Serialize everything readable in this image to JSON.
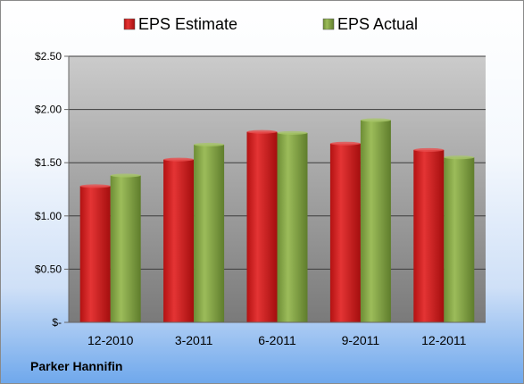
{
  "company": "Parker Hannifin",
  "colors": {
    "estimate": "#d42424",
    "actual": "#8aab4a",
    "plot_top": "#c8c8c8",
    "plot_bottom": "#7c7c7c",
    "grid": "#3a3a3a"
  },
  "chart_data": {
    "type": "bar",
    "categories": [
      "12-2010",
      "3-2011",
      "6-2011",
      "9-2011",
      "12-2011"
    ],
    "series": [
      {
        "name": "EPS Estimate",
        "values": [
          1.28,
          1.53,
          1.79,
          1.68,
          1.62
        ]
      },
      {
        "name": "EPS Actual",
        "values": [
          1.38,
          1.67,
          1.78,
          1.9,
          1.55
        ]
      }
    ],
    "ylim": [
      0,
      2.5
    ],
    "yticks": [
      0,
      0.5,
      1.0,
      1.5,
      2.0,
      2.5
    ],
    "ytick_labels": [
      "$-",
      "$0.50",
      "$1.00",
      "$1.50",
      "$2.00",
      "$2.50"
    ],
    "legend_position": "top",
    "grid": true,
    "title": "",
    "xlabel": "",
    "ylabel": ""
  }
}
